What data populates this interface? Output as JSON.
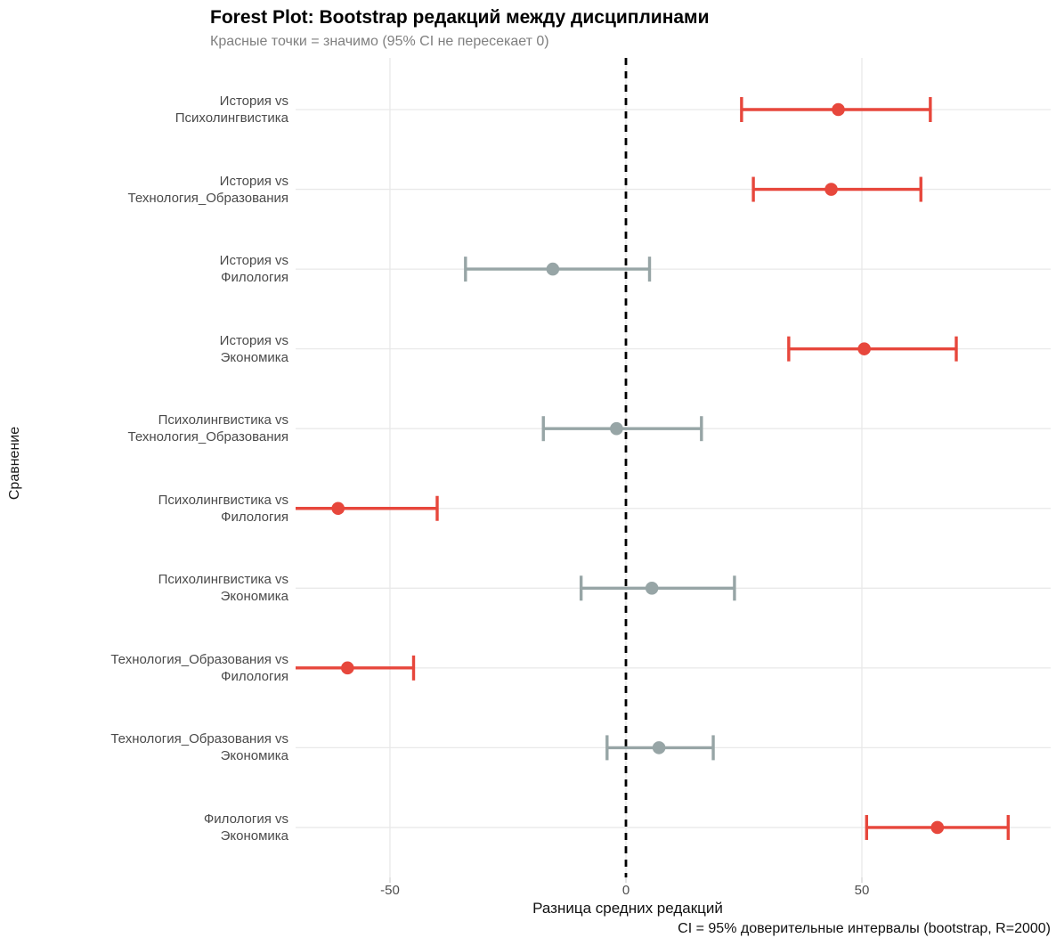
{
  "caption": "CI = 95% доверительные интервалы (bootstrap, R=2000)",
  "colors": {
    "significant": "#E7473C",
    "not_significant": "#97A5A6",
    "gridline": "#E9E9E9",
    "tick_mark": "#D6D6D6",
    "zero_line": "#000000",
    "label_text": "#4A4A4A",
    "subtitle_text": "#7F7F7F"
  },
  "chart_data": {
    "type": "scatter",
    "subtype": "forest-plot-with-error-bars",
    "title": "Forest Plot: Bootstrap редакций между дисциплинами",
    "subtitle": "Красные точки = значимо (95% CI не пересекает 0)",
    "xlabel": "Разница средних редакций",
    "ylabel": "Сравнение",
    "xlim": [
      -70,
      90
    ],
    "xticks": [
      -50,
      0,
      50
    ],
    "zero_line": 0,
    "grid": "major-only",
    "legend_position": "none",
    "rows": [
      {
        "label": "История vs Психолингвистика",
        "estimate": 45,
        "ci_low": 24.5,
        "ci_high": 64.5,
        "significant": true
      },
      {
        "label": "История vs Технология_Образования",
        "estimate": 43.5,
        "ci_low": 27,
        "ci_high": 62.5,
        "significant": true
      },
      {
        "label": "История vs Филология",
        "estimate": -15.5,
        "ci_low": -34,
        "ci_high": 5,
        "significant": false
      },
      {
        "label": "История vs Экономика",
        "estimate": 50.5,
        "ci_low": 34.5,
        "ci_high": 70,
        "significant": true
      },
      {
        "label": "Психолингвистика vs Технология_Образования",
        "estimate": -2,
        "ci_low": -17.5,
        "ci_high": 16,
        "significant": false
      },
      {
        "label": "Психолингвистика vs Филология",
        "estimate": -61,
        "ci_low": -80,
        "ci_high": -40,
        "significant": true
      },
      {
        "label": "Психолингвистика vs Экономика",
        "estimate": 5.5,
        "ci_low": -9.5,
        "ci_high": 23,
        "significant": false
      },
      {
        "label": "Технология_Образования vs Филология",
        "estimate": -59,
        "ci_low": -74.5,
        "ci_high": -45,
        "significant": true
      },
      {
        "label": "Технология_Образования vs Экономика",
        "estimate": 7,
        "ci_low": -4,
        "ci_high": 18.5,
        "significant": false
      },
      {
        "label": "Филология vs Экономика",
        "estimate": 66,
        "ci_low": 51,
        "ci_high": 81,
        "significant": true
      }
    ]
  }
}
